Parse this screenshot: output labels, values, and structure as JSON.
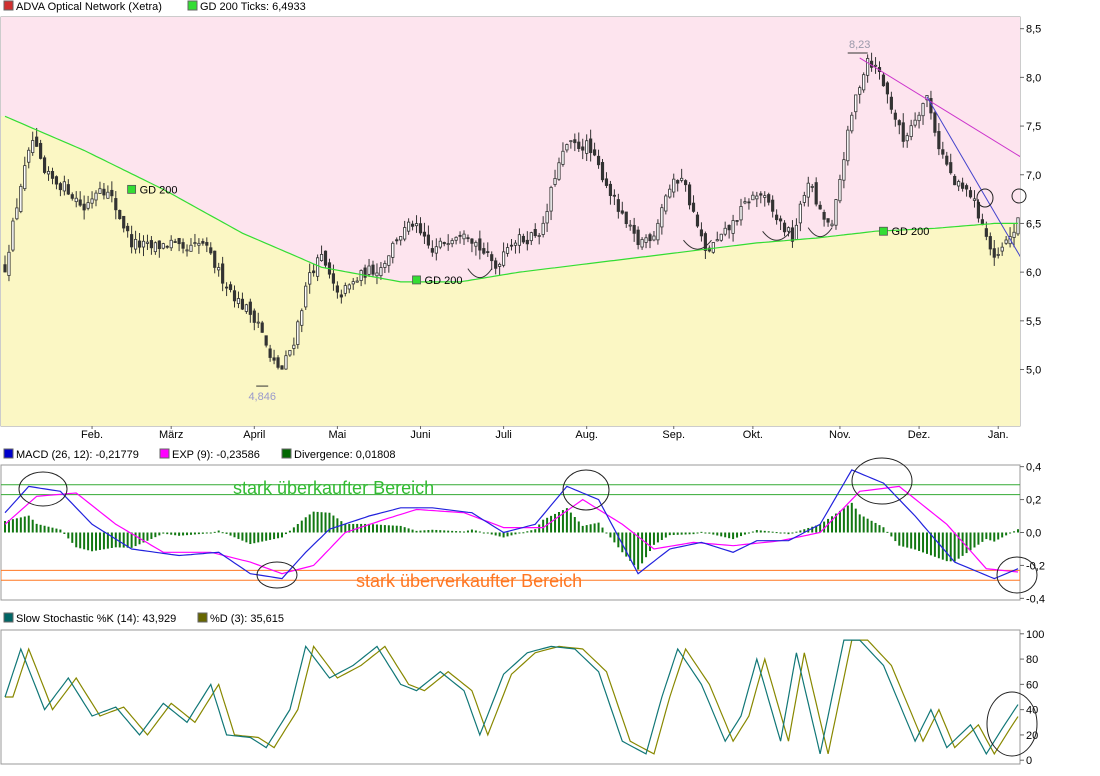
{
  "chart_data": [
    {
      "type": "candlestick",
      "title": "ADVA Optical Network (Xetra)",
      "legend": [
        {
          "label": "ADVA Optical Network (Xetra)",
          "color": "#d03030"
        },
        {
          "label": "GD 200 Ticks: 6,4933",
          "color": "#33dd33"
        }
      ],
      "x_ticks": [
        "Feb.",
        "März",
        "April",
        "Mai",
        "Juni",
        "Juli",
        "Aug.",
        "Sep.",
        "Okt.",
        "Nov.",
        "Dez.",
        "Jan."
      ],
      "y_ticks": [
        "8,5",
        "8,0",
        "7,5",
        "7,0",
        "6,5",
        "6,0",
        "5,5",
        "5,0"
      ],
      "ylim": [
        4.42,
        8.62
      ],
      "high_label": "8,23",
      "low_label": "4,846",
      "gd_label": "GD 200",
      "colors": {
        "upper_zone": "#fde4ee",
        "lower_zone": "#fbf7c4",
        "gd200": "#33dd33",
        "candle_up": "#ffffff",
        "candle_down": "#333333"
      },
      "close_anchors": [
        [
          0,
          6.05
        ],
        [
          4,
          6.9
        ],
        [
          7,
          7.35
        ],
        [
          10,
          7.0
        ],
        [
          16,
          6.85
        ],
        [
          20,
          6.65
        ],
        [
          24,
          6.9
        ],
        [
          27,
          6.75
        ],
        [
          32,
          6.3
        ],
        [
          37,
          6.25
        ],
        [
          42,
          6.3
        ],
        [
          45,
          6.2
        ],
        [
          50,
          6.3
        ],
        [
          54,
          6.0
        ],
        [
          59,
          5.7
        ],
        [
          64,
          5.5
        ],
        [
          67,
          5.1
        ],
        [
          70,
          5.0
        ],
        [
          73,
          5.3
        ],
        [
          77,
          6.0
        ],
        [
          80,
          6.15
        ],
        [
          84,
          5.75
        ],
        [
          87,
          5.85
        ],
        [
          91,
          6.0
        ],
        [
          95,
          6.05
        ],
        [
          99,
          6.35
        ],
        [
          103,
          6.5
        ],
        [
          108,
          6.2
        ],
        [
          112,
          6.35
        ],
        [
          116,
          6.45
        ],
        [
          120,
          6.25
        ],
        [
          124,
          6.05
        ],
        [
          127,
          6.3
        ],
        [
          132,
          6.35
        ],
        [
          136,
          6.45
        ],
        [
          139,
          7.0
        ],
        [
          142,
          7.3
        ],
        [
          147,
          7.3
        ],
        [
          151,
          7.0
        ],
        [
          156,
          6.55
        ],
        [
          160,
          6.3
        ],
        [
          164,
          6.4
        ],
        [
          167,
          6.8
        ],
        [
          171,
          7.0
        ],
        [
          174,
          6.6
        ],
        [
          177,
          6.2
        ],
        [
          181,
          6.35
        ],
        [
          184,
          6.5
        ],
        [
          188,
          6.75
        ],
        [
          191,
          6.8
        ],
        [
          195,
          6.55
        ],
        [
          199,
          6.35
        ],
        [
          203,
          6.95
        ],
        [
          206,
          6.6
        ],
        [
          209,
          6.45
        ],
        [
          212,
          7.2
        ],
        [
          215,
          7.8
        ],
        [
          218,
          8.2
        ],
        [
          221,
          8.05
        ],
        [
          224,
          7.7
        ],
        [
          227,
          7.35
        ],
        [
          230,
          7.6
        ],
        [
          233,
          7.8
        ],
        [
          236,
          7.3
        ],
        [
          240,
          6.9
        ],
        [
          244,
          6.8
        ],
        [
          247,
          6.5
        ],
        [
          250,
          6.1
        ],
        [
          253,
          6.3
        ],
        [
          256,
          6.5
        ]
      ],
      "gd200_anchors": [
        [
          0,
          7.6
        ],
        [
          20,
          7.25
        ],
        [
          40,
          6.85
        ],
        [
          60,
          6.4
        ],
        [
          80,
          6.05
        ],
        [
          100,
          5.9
        ],
        [
          115,
          5.9
        ],
        [
          130,
          6.0
        ],
        [
          150,
          6.1
        ],
        [
          170,
          6.2
        ],
        [
          190,
          6.3
        ],
        [
          205,
          6.35
        ],
        [
          220,
          6.42
        ],
        [
          235,
          6.45
        ],
        [
          250,
          6.5
        ],
        [
          256,
          6.5
        ]
      ],
      "trendlines": [
        {
          "from": [
            216,
            8.2
          ],
          "to": [
            256,
            7.2
          ],
          "color": "#cc33cc"
        },
        {
          "from": [
            233,
            7.8
          ],
          "to": [
            256,
            6.2
          ],
          "color": "#4444cc"
        }
      ],
      "gd_markers": [
        [
          32,
          6.85
        ],
        [
          104,
          5.92
        ],
        [
          222,
          6.42
        ]
      ]
    },
    {
      "type": "line",
      "title": "MACD",
      "legend": [
        {
          "label": "MACD (26, 12): -0,21779",
          "color": "#0000cc"
        },
        {
          "label": "EXP (9): -0,23586",
          "color": "#ff00ff"
        },
        {
          "label": "Divergence: 0,01808",
          "color": "#006600"
        }
      ],
      "y_ticks": [
        "0,4",
        "0,2",
        "0,0",
        "-0,2",
        "-0,4"
      ],
      "ylim": [
        -0.41,
        0.41
      ],
      "annotations": {
        "overbought": "stark überkaufter Bereich",
        "oversold": "stark überverkaufter Bereich"
      },
      "macd_anchors": [
        [
          0,
          0.12
        ],
        [
          6,
          0.28
        ],
        [
          14,
          0.25
        ],
        [
          22,
          0.05
        ],
        [
          32,
          -0.1
        ],
        [
          44,
          -0.14
        ],
        [
          54,
          -0.12
        ],
        [
          62,
          -0.25
        ],
        [
          70,
          -0.28
        ],
        [
          76,
          -0.12
        ],
        [
          82,
          0.02
        ],
        [
          92,
          0.1
        ],
        [
          100,
          0.15
        ],
        [
          108,
          0.15
        ],
        [
          118,
          0.12
        ],
        [
          126,
          0.0
        ],
        [
          134,
          0.05
        ],
        [
          142,
          0.28
        ],
        [
          150,
          0.2
        ],
        [
          160,
          -0.25
        ],
        [
          168,
          -0.1
        ],
        [
          176,
          -0.06
        ],
        [
          184,
          -0.12
        ],
        [
          190,
          -0.05
        ],
        [
          198,
          -0.05
        ],
        [
          206,
          0.05
        ],
        [
          214,
          0.38
        ],
        [
          222,
          0.3
        ],
        [
          230,
          0.1
        ],
        [
          240,
          -0.18
        ],
        [
          250,
          -0.28
        ],
        [
          256,
          -0.22
        ]
      ],
      "signal_anchors": [
        [
          0,
          0.05
        ],
        [
          8,
          0.22
        ],
        [
          18,
          0.24
        ],
        [
          28,
          0.05
        ],
        [
          40,
          -0.12
        ],
        [
          52,
          -0.12
        ],
        [
          62,
          -0.18
        ],
        [
          70,
          -0.25
        ],
        [
          78,
          -0.2
        ],
        [
          86,
          0.0
        ],
        [
          96,
          0.08
        ],
        [
          104,
          0.14
        ],
        [
          116,
          0.12
        ],
        [
          126,
          0.03
        ],
        [
          136,
          0.03
        ],
        [
          146,
          0.2
        ],
        [
          156,
          0.05
        ],
        [
          164,
          -0.1
        ],
        [
          174,
          -0.06
        ],
        [
          184,
          -0.08
        ],
        [
          196,
          -0.05
        ],
        [
          206,
          0.0
        ],
        [
          216,
          0.25
        ],
        [
          226,
          0.28
        ],
        [
          238,
          0.05
        ],
        [
          248,
          -0.22
        ],
        [
          256,
          -0.24
        ]
      ],
      "hlines": [
        0.29,
        0.23,
        -0.23,
        -0.29
      ]
    },
    {
      "type": "line",
      "title": "Slow Stochastic",
      "legend": [
        {
          "label": "Slow Stochastic %K (14): 43,929",
          "color": "#006666"
        },
        {
          "label": "%D (3): 35,615",
          "color": "#666600"
        }
      ],
      "y_ticks": [
        "100",
        "80",
        "60",
        "40",
        "20",
        "0"
      ],
      "ylim": [
        -3,
        103
      ],
      "k_anchors": [
        [
          0,
          50
        ],
        [
          4,
          88
        ],
        [
          10,
          40
        ],
        [
          16,
          65
        ],
        [
          22,
          35
        ],
        [
          28,
          42
        ],
        [
          34,
          20
        ],
        [
          40,
          45
        ],
        [
          46,
          30
        ],
        [
          52,
          60
        ],
        [
          56,
          20
        ],
        [
          62,
          18
        ],
        [
          66,
          10
        ],
        [
          72,
          40
        ],
        [
          76,
          90
        ],
        [
          82,
          65
        ],
        [
          88,
          75
        ],
        [
          94,
          90
        ],
        [
          100,
          60
        ],
        [
          104,
          55
        ],
        [
          110,
          70
        ],
        [
          116,
          55
        ],
        [
          120,
          20
        ],
        [
          126,
          68
        ],
        [
          132,
          85
        ],
        [
          138,
          90
        ],
        [
          144,
          88
        ],
        [
          150,
          70
        ],
        [
          156,
          15
        ],
        [
          162,
          5
        ],
        [
          166,
          50
        ],
        [
          170,
          88
        ],
        [
          176,
          60
        ],
        [
          182,
          15
        ],
        [
          186,
          35
        ],
        [
          190,
          80
        ],
        [
          196,
          15
        ],
        [
          200,
          85
        ],
        [
          206,
          5
        ],
        [
          212,
          95
        ],
        [
          216,
          95
        ],
        [
          222,
          75
        ],
        [
          230,
          15
        ],
        [
          234,
          40
        ],
        [
          238,
          10
        ],
        [
          244,
          28
        ],
        [
          248,
          5
        ],
        [
          252,
          25
        ],
        [
          256,
          44
        ]
      ],
      "d_offset": 2
    }
  ]
}
